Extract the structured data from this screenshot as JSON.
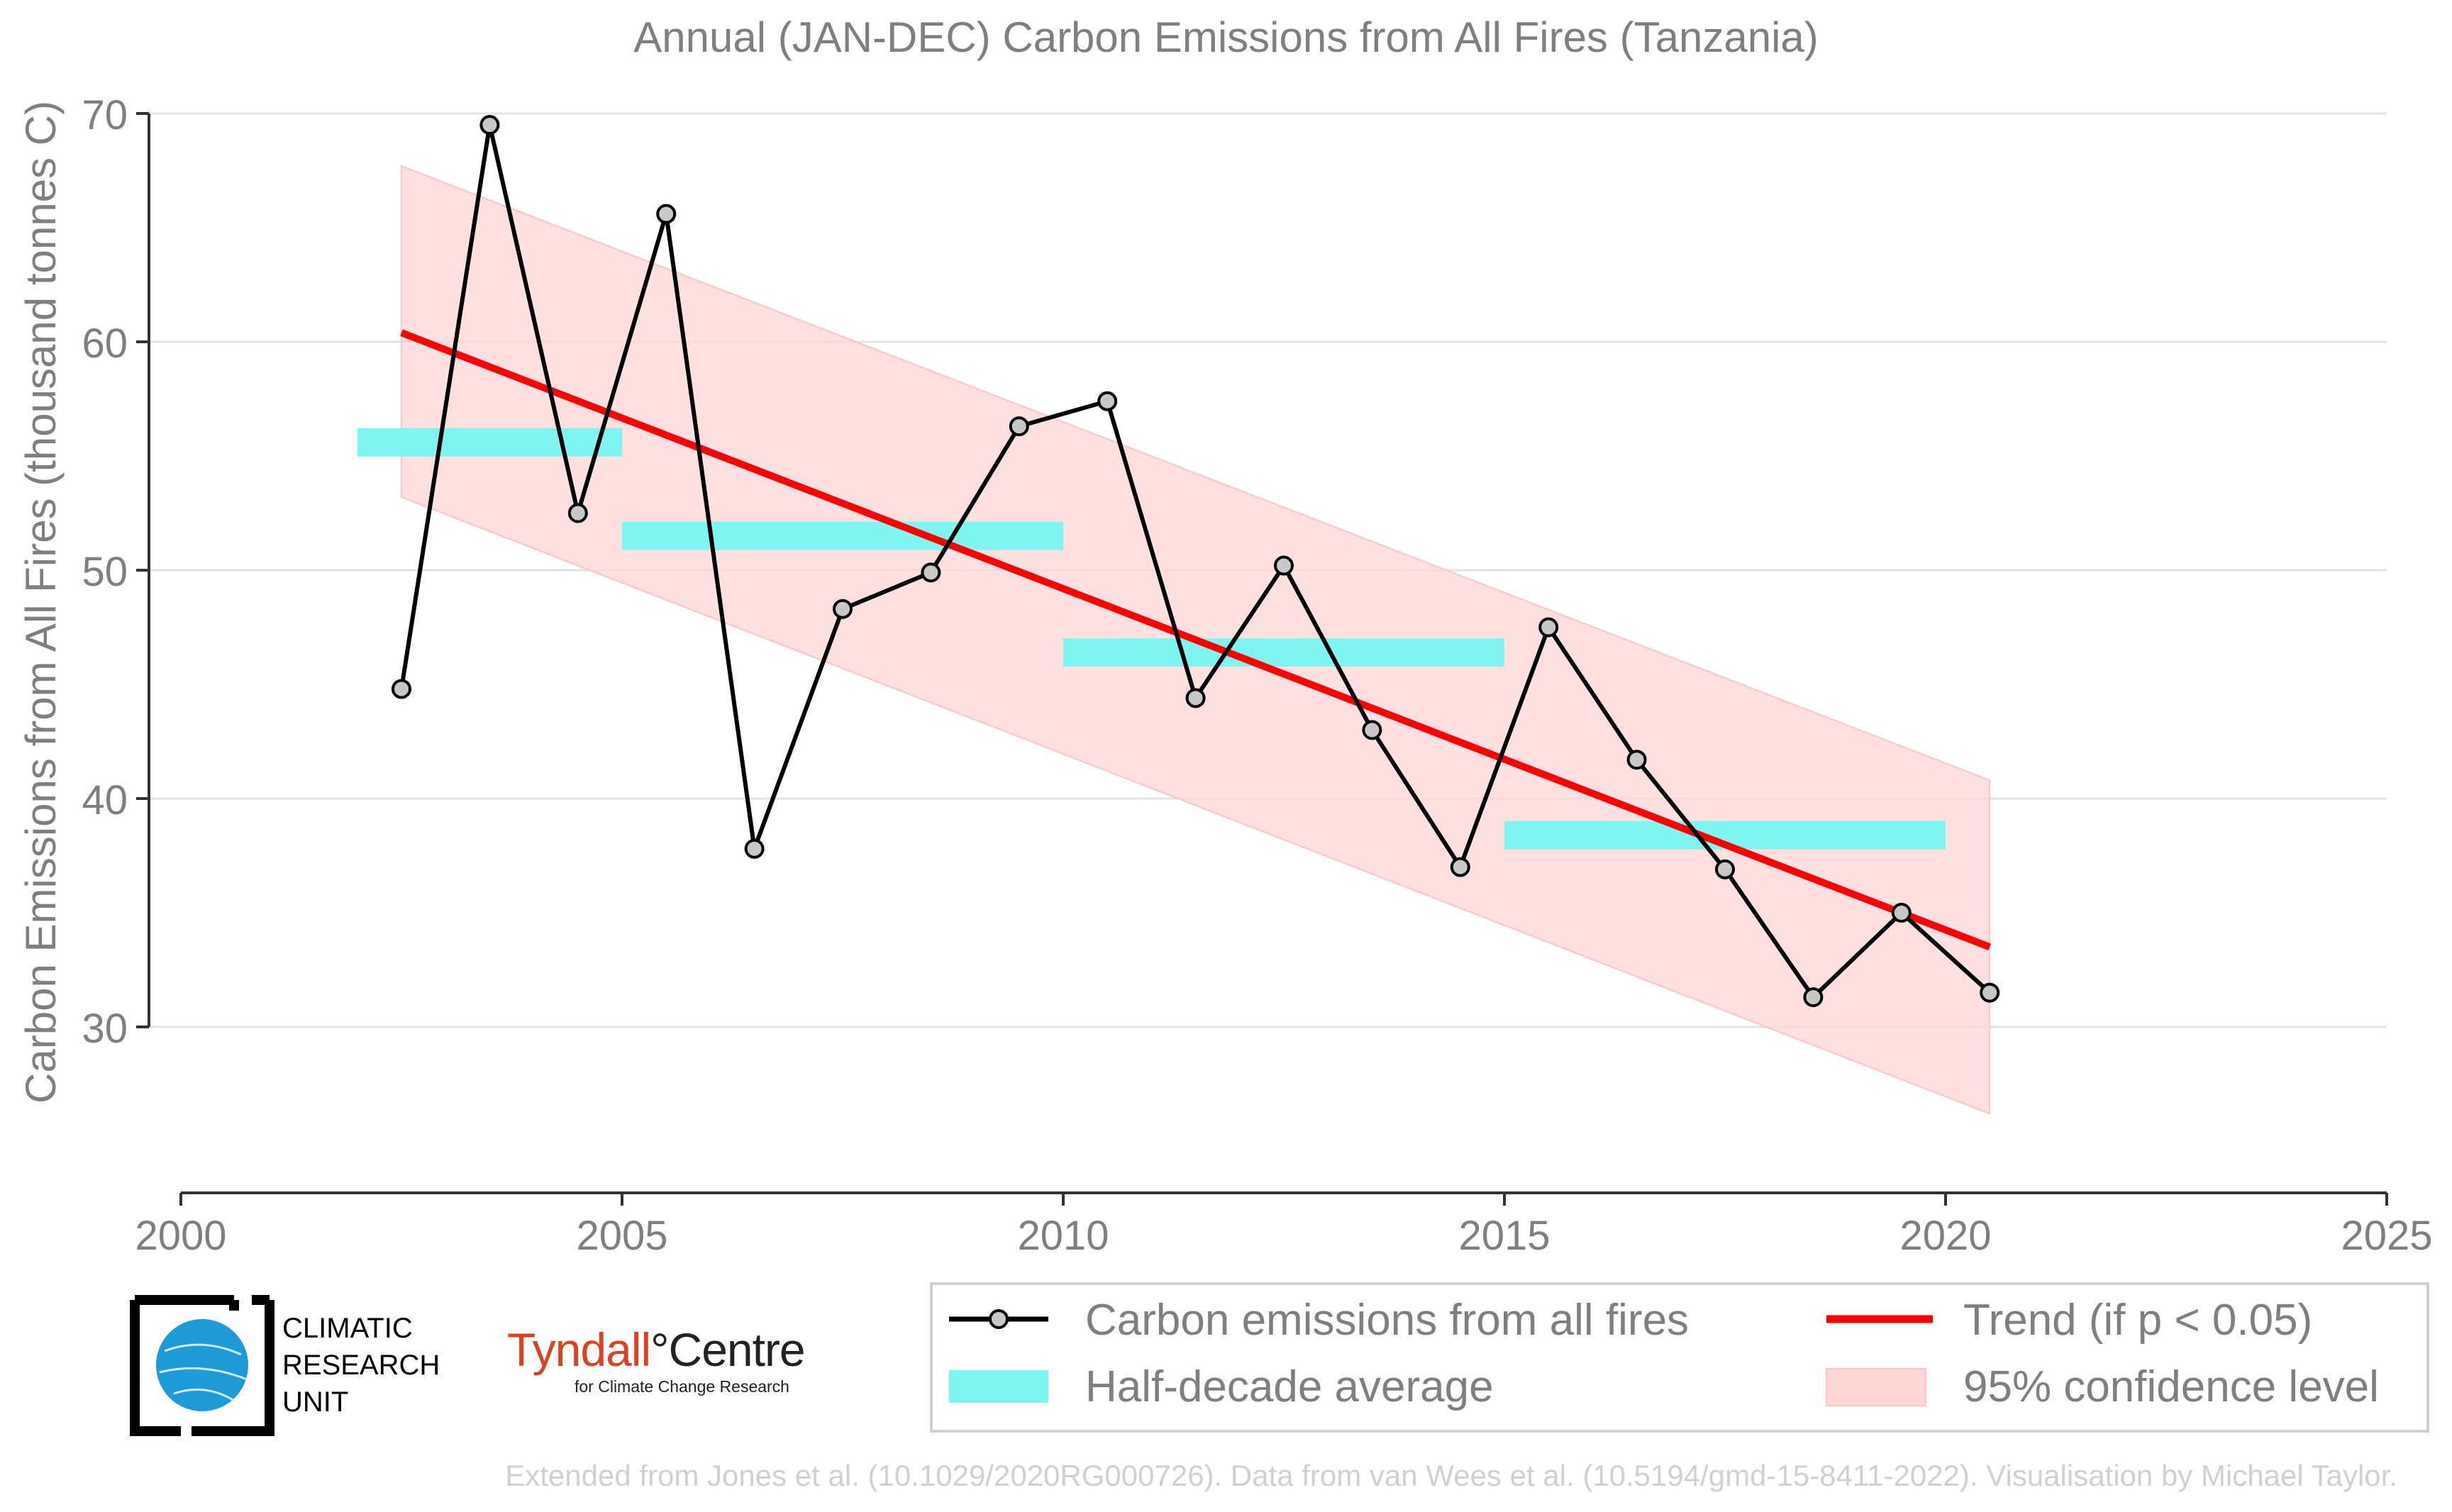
{
  "title": "Annual (JAN-DEC) Carbon Emissions from All Fires (Tanzania)",
  "footer": "Extended from Jones et al. (10.1029/2020RG000726). Data from van Wees et al. (10.5194/gmd-15-8411-2022). Visualisation by Michael Taylor.",
  "logos": {
    "cru": [
      "CLIMATIC",
      "RESEARCH",
      "UNIT"
    ],
    "tyndall_main": "Tyndall",
    "tyndall_degree": "°",
    "tyndall_centre": "Centre",
    "tyndall_sub": "for Climate Change Research"
  },
  "colors": {
    "series": "#000000",
    "marker_fill": "#c8c8c8",
    "trend": "#ff0000",
    "band": "#ffd6d6",
    "half_decade": "#7ff5f2",
    "text": "#7f7f7f",
    "grid": "#e3e3e3"
  },
  "chart_data": {
    "type": "line",
    "title": "Annual (JAN-DEC) Carbon Emissions from All Fires (Tanzania)",
    "xlabel": "",
    "ylabel": "Carbon Emissions from All Fires (thousand tonnes C)",
    "xlim": [
      2000,
      2025
    ],
    "ylim": [
      23,
      70
    ],
    "xticks": [
      2000,
      2005,
      2010,
      2015,
      2020,
      2025
    ],
    "yticks": [
      30,
      40,
      50,
      60,
      70
    ],
    "grid": "horizontal",
    "legend_position": "bottom-right",
    "series": [
      {
        "name": "Carbon emissions from all fires",
        "kind": "line-markers",
        "x": [
          2002.5,
          2003.5,
          2004.5,
          2005.5,
          2006.5,
          2007.5,
          2008.5,
          2009.5,
          2010.5,
          2011.5,
          2012.5,
          2013.5,
          2014.5,
          2015.5,
          2016.5,
          2017.5,
          2018.5,
          2019.5,
          2020.5
        ],
        "y": [
          44.8,
          69.5,
          52.5,
          65.6,
          37.8,
          48.3,
          49.9,
          56.3,
          57.4,
          44.4,
          50.2,
          43.0,
          37.0,
          47.5,
          41.7,
          36.9,
          31.3,
          35.0,
          31.5
        ]
      },
      {
        "name": "Trend (if p < 0.05)",
        "kind": "trend",
        "x": [
          2002.5,
          2020.5
        ],
        "y": [
          60.4,
          33.5
        ]
      },
      {
        "name": "Half-decade average",
        "kind": "segments",
        "segments": [
          {
            "x0": 2002,
            "x1": 2005,
            "y": 55.6
          },
          {
            "x0": 2005,
            "x1": 2010,
            "y": 51.5
          },
          {
            "x0": 2010,
            "x1": 2015,
            "y": 46.4
          },
          {
            "x0": 2015,
            "x1": 2020,
            "y": 38.4
          }
        ]
      },
      {
        "name": "95% confidence level",
        "kind": "band",
        "x": [
          2002.5,
          2020.5
        ],
        "upper": [
          67.7,
          40.8
        ],
        "lower": [
          53.2,
          26.2
        ]
      }
    ]
  }
}
